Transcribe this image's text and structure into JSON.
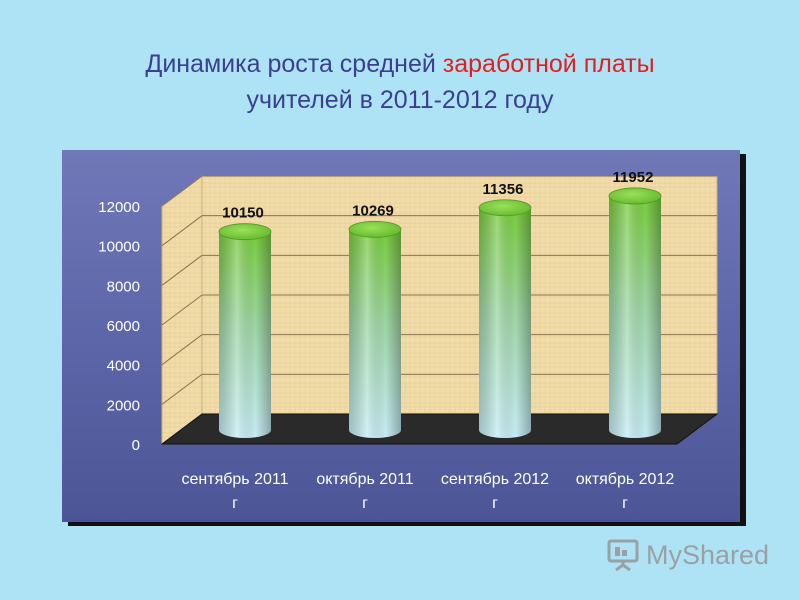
{
  "title": {
    "part1": "Динамика роста средней ",
    "part2": "заработной платы",
    "line2": "учителей в 2011-2012 году"
  },
  "logo": {
    "text": "MyShared"
  },
  "colors": {
    "title": "#3a3f8f",
    "title_highlight": "#e02020",
    "background": "#aee3f5",
    "panel": "#5d66a8",
    "wall": "#f0d9a8",
    "floor": "#2b2b2b",
    "bar_top": "#7dcf3a",
    "bar_bottom": "#bfe9f3"
  },
  "chart_data": {
    "type": "bar",
    "style": "3d-cylinder",
    "categories": [
      "сентябрь 2011 г",
      "октябрь 2011 г",
      "сентябрь 2012 г",
      "октябрь 2012 г"
    ],
    "category_lines": [
      [
        "сентябрь 2011",
        "г"
      ],
      [
        "октябрь 2011",
        "г"
      ],
      [
        "сентябрь 2012",
        "г"
      ],
      [
        "октябрь 2012",
        "г"
      ]
    ],
    "values": [
      10150,
      10269,
      11356,
      11952
    ],
    "data_labels": [
      "10150",
      "10269",
      "11356",
      "11952"
    ],
    "ylim": [
      0,
      12000
    ],
    "yticks": [
      0,
      2000,
      4000,
      6000,
      8000,
      10000,
      12000
    ],
    "grid": true,
    "legend": "none",
    "xlabel": "",
    "ylabel": ""
  }
}
